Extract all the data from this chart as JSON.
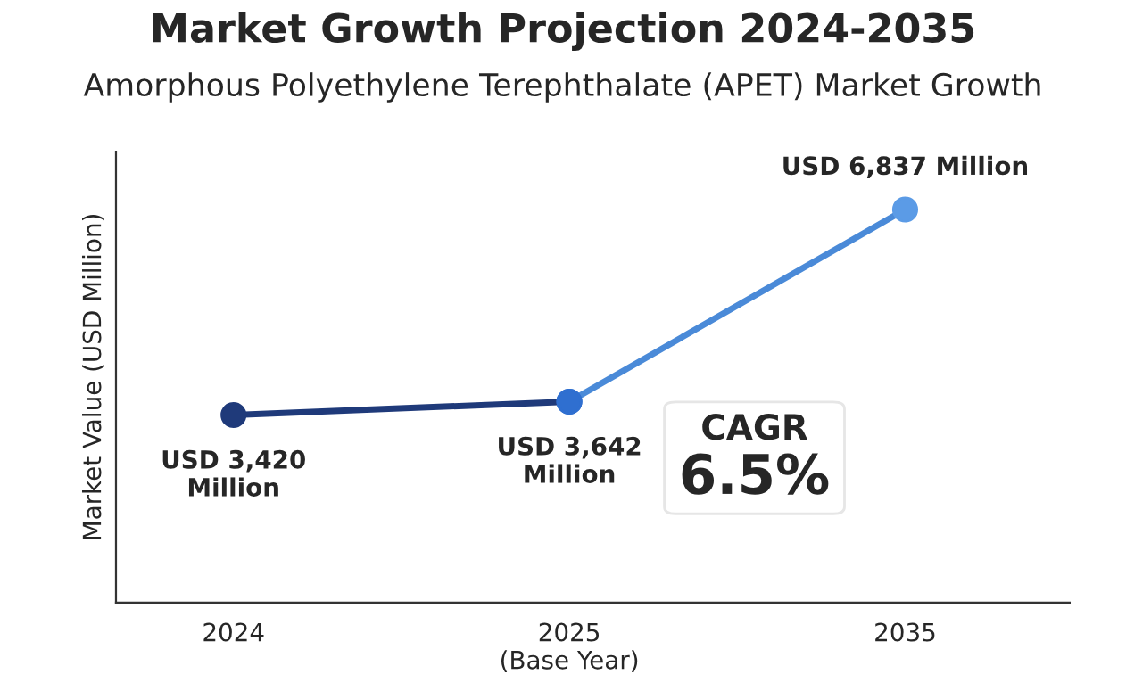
{
  "chart_data": {
    "type": "line",
    "title": "Market Growth Projection 2024-2035",
    "subtitle": "Amorphous Polyethylene Terephthalate (APET) Market Growth",
    "ylabel": "Market Value (USD Million)",
    "categories": [
      "2024",
      "2025\n(Base Year)",
      "2035"
    ],
    "series": [
      {
        "color": "#1f3a7a",
        "values": [
          3420,
          3642,
          null
        ],
        "colors": [
          "#1f3a7a",
          "#2f6fd0",
          null
        ],
        "value_labels": [
          "USD 3,420\nMillion",
          "USD 3,642\nMillion",
          null
        ]
      },
      {
        "color": "#4a8ad8",
        "values": [
          null,
          3642,
          6837
        ],
        "colors": [
          null,
          "#2f6fd0",
          "#5b9be6"
        ],
        "value_labels": [
          null,
          null,
          "USD 6,837 Million"
        ]
      }
    ],
    "ylim": [
      300,
      7800
    ],
    "marker": "circle",
    "grid": false,
    "legend": false,
    "tick_labels": "x",
    "annotations": [
      "CAGR",
      "6.5%"
    ]
  }
}
